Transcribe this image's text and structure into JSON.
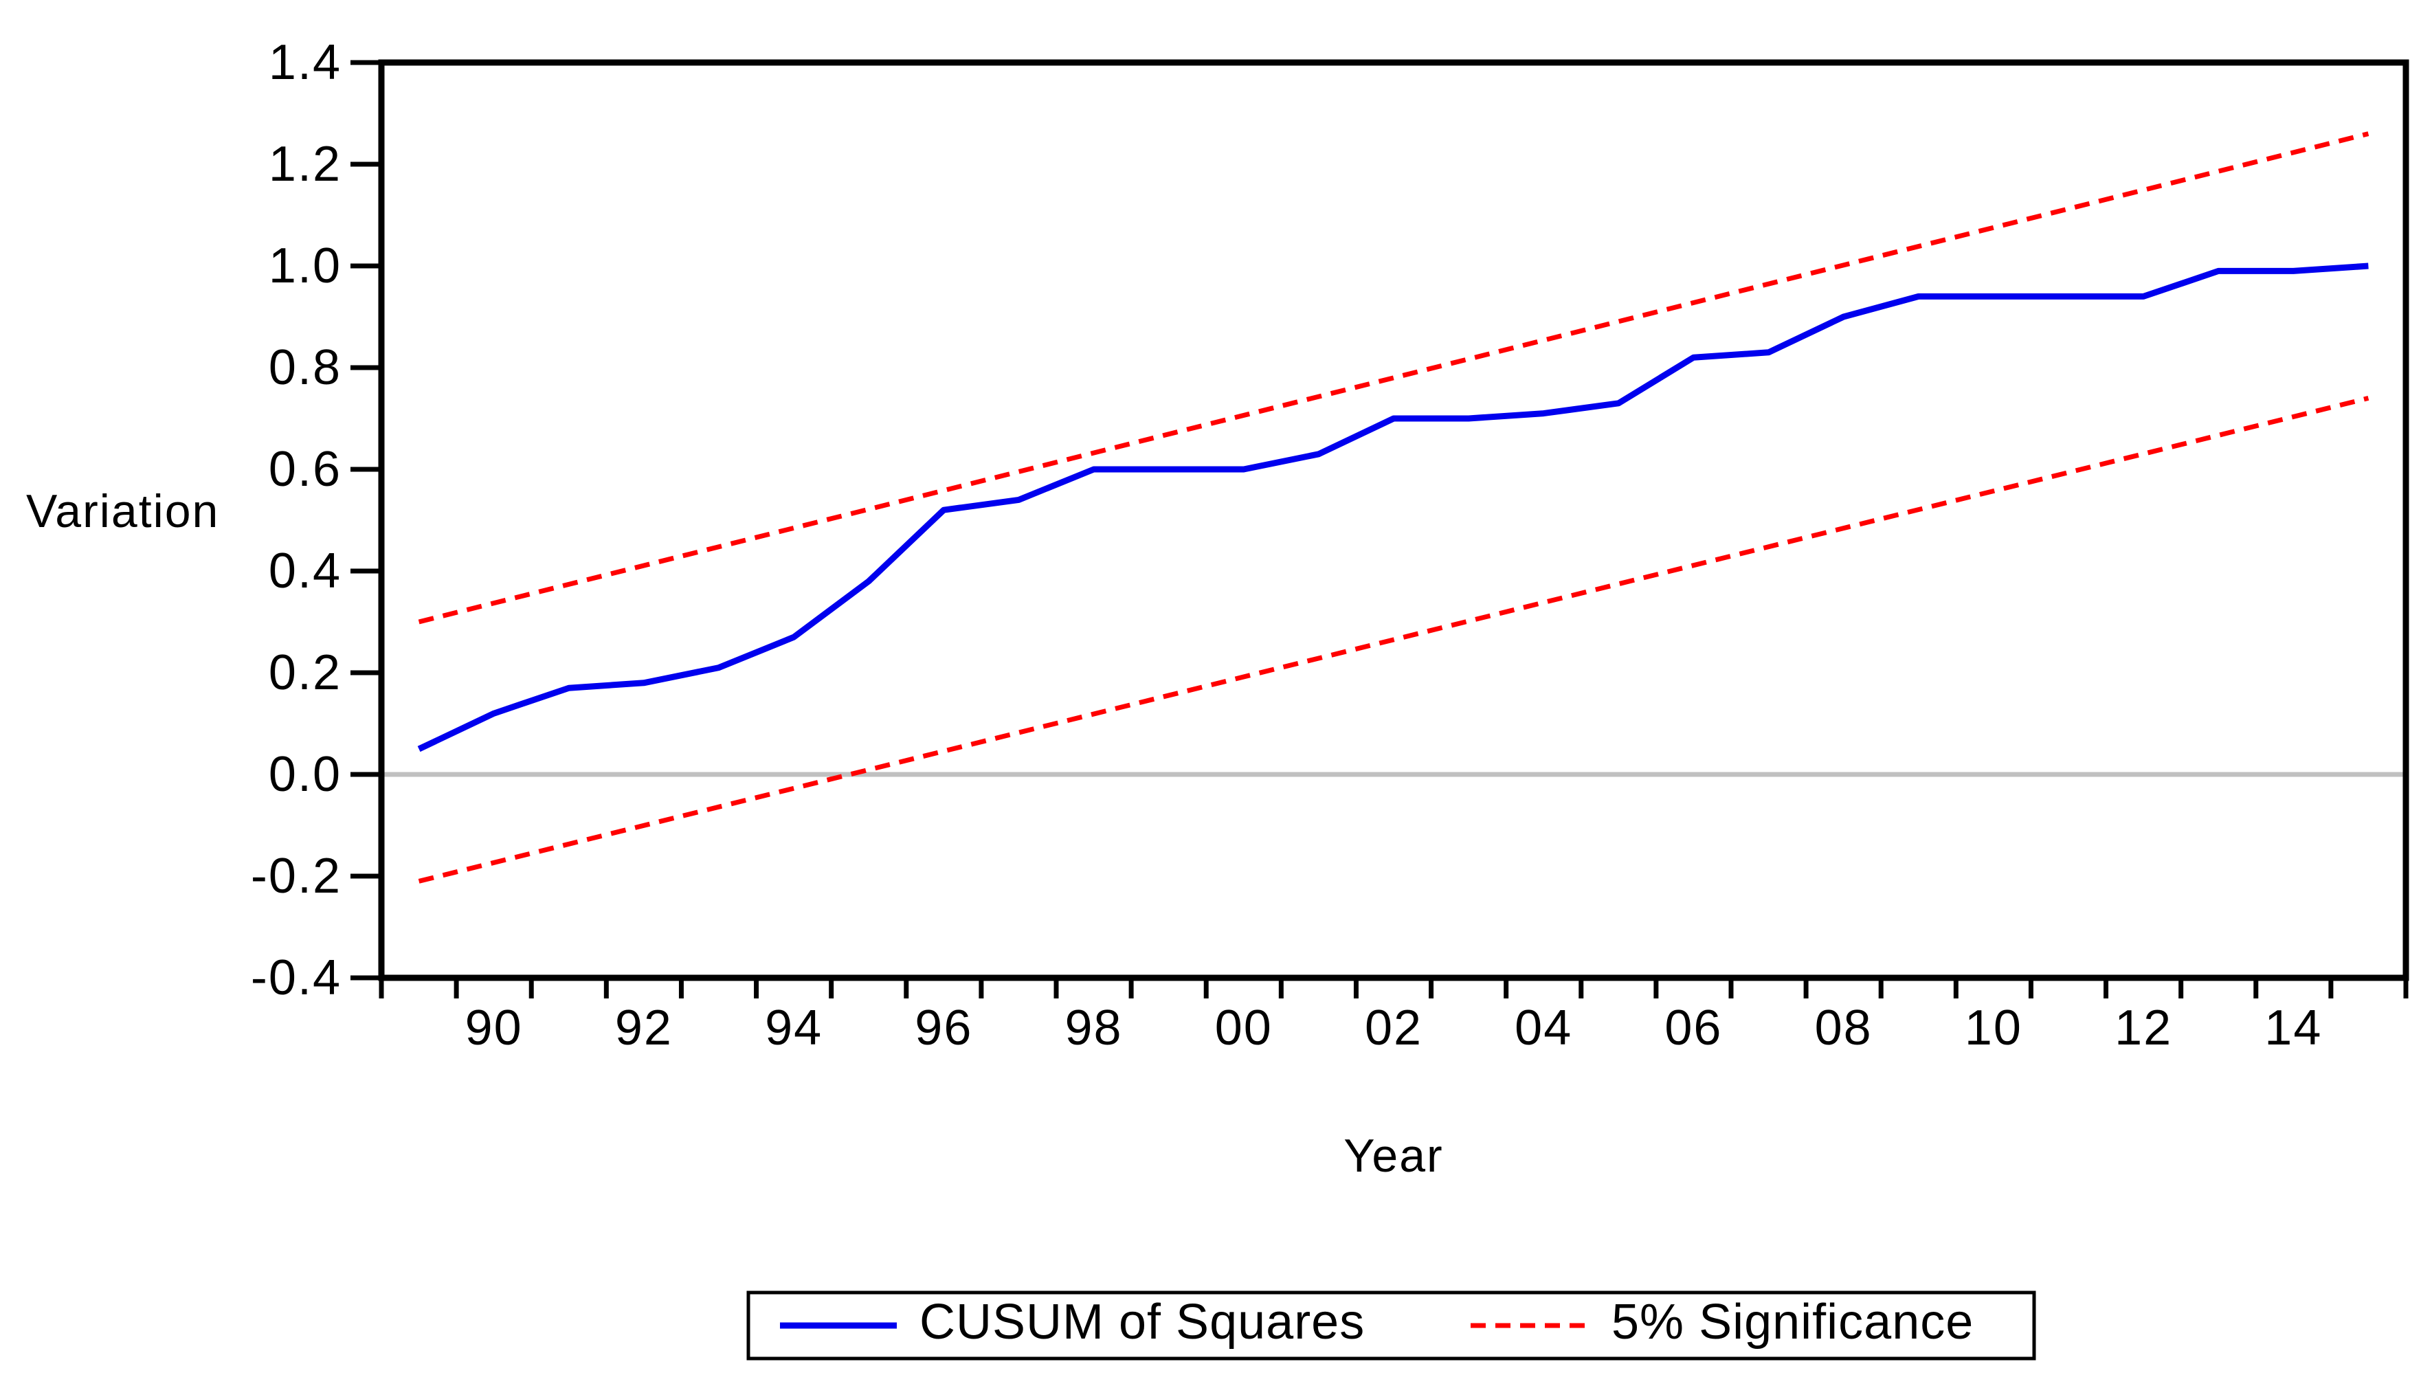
{
  "figure": {
    "background": "#ffffff"
  },
  "axes": {
    "y_title": "Variation",
    "x_title": "Year"
  },
  "legend": {
    "series1_label": "CUSUM of Squares",
    "series2_label": "5% Significance"
  },
  "colors": {
    "cusum_line": "#0000ee",
    "significance_line": "#ff0000",
    "zero_line": "#c0c0c0",
    "axis": "#000000",
    "tick": "#000000"
  },
  "chart_data": {
    "type": "line",
    "title": "",
    "xlabel": "Year",
    "ylabel": "Variation",
    "xlim": [
      1989,
      2016
    ],
    "ylim": [
      -0.4,
      1.4
    ],
    "y_tick_step": 0.2,
    "grid": false,
    "zero_line": true,
    "legend_position": "bottom",
    "y_ticks": [
      {
        "v": 1.4,
        "label": "1.4"
      },
      {
        "v": 1.2,
        "label": "1.2"
      },
      {
        "v": 1.0,
        "label": "1.0"
      },
      {
        "v": 0.8,
        "label": "0.8"
      },
      {
        "v": 0.6,
        "label": "0.6"
      },
      {
        "v": 0.4,
        "label": "0.4"
      },
      {
        "v": 0.2,
        "label": "0.2"
      },
      {
        "v": 0.0,
        "label": "0.0"
      },
      {
        "v": -0.2,
        "label": "-0.2"
      },
      {
        "v": -0.4,
        "label": "-0.4"
      }
    ],
    "x_ticks": [
      {
        "year": 1990,
        "label": "90"
      },
      {
        "year": 1992,
        "label": "92"
      },
      {
        "year": 1994,
        "label": "94"
      },
      {
        "year": 1996,
        "label": "96"
      },
      {
        "year": 1998,
        "label": "98"
      },
      {
        "year": 2000,
        "label": "00"
      },
      {
        "year": 2002,
        "label": "02"
      },
      {
        "year": 2004,
        "label": "04"
      },
      {
        "year": 2006,
        "label": "06"
      },
      {
        "year": 2008,
        "label": "08"
      },
      {
        "year": 2010,
        "label": "10"
      },
      {
        "year": 2012,
        "label": "12"
      },
      {
        "year": 2014,
        "label": "14"
      }
    ],
    "series": [
      {
        "name": "CUSUM of Squares",
        "style": "solid",
        "color": "#0000ee",
        "x": [
          1989,
          1990,
          1991,
          1992,
          1993,
          1994,
          1995,
          1996,
          1997,
          1998,
          1999,
          2000,
          2001,
          2002,
          2003,
          2004,
          2005,
          2006,
          2007,
          2008,
          2009,
          2010,
          2011,
          2012,
          2013,
          2014,
          2015
        ],
        "y": [
          0.05,
          0.12,
          0.17,
          0.18,
          0.21,
          0.27,
          0.38,
          0.52,
          0.54,
          0.6,
          0.6,
          0.6,
          0.63,
          0.7,
          0.7,
          0.71,
          0.73,
          0.82,
          0.83,
          0.9,
          0.94,
          0.94,
          0.94,
          0.94,
          0.99,
          0.99,
          1.0
        ]
      },
      {
        "name": "5% Significance (upper)",
        "style": "dashed",
        "color": "#ff0000",
        "x": [
          1989,
          2015
        ],
        "y": [
          0.3,
          1.26
        ]
      },
      {
        "name": "5% Significance (lower)",
        "style": "dashed",
        "color": "#ff0000",
        "x": [
          1989,
          2015
        ],
        "y": [
          -0.21,
          0.74
        ]
      }
    ]
  }
}
